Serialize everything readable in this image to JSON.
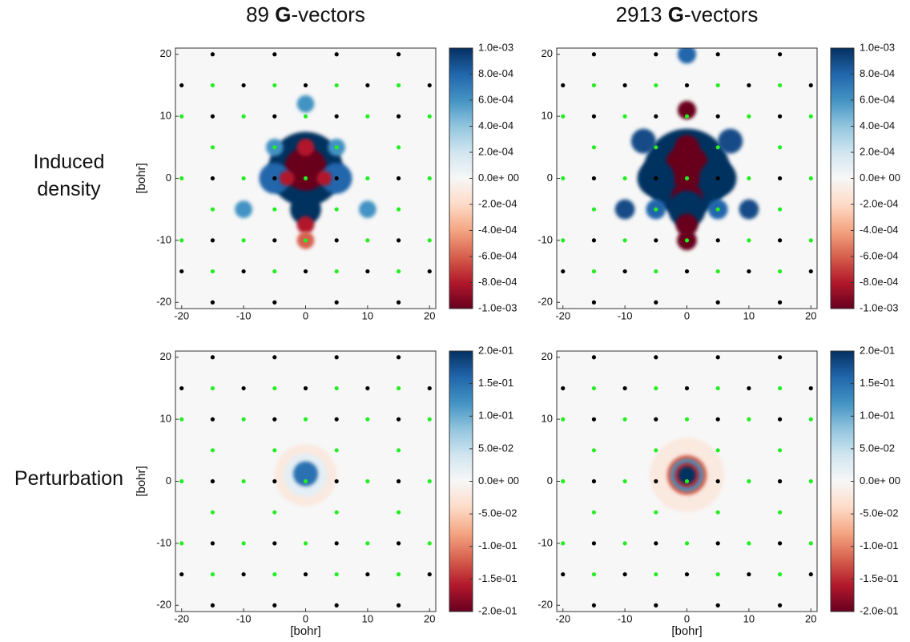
{
  "chart_data": [
    {
      "type": "heatmap",
      "title_parts": [
        "89 ",
        "G",
        "-vectors"
      ],
      "title_bold": [
        false,
        true,
        false
      ],
      "row_label": [
        "Induced",
        "density"
      ],
      "ylabel": "[bohr]",
      "xlim": [
        -21,
        21
      ],
      "ylim": [
        -21,
        21
      ],
      "xticks": [
        -20,
        -10,
        0,
        10,
        20
      ],
      "yticks": [
        -20,
        -10,
        0,
        10,
        20
      ],
      "colormap": [
        "#67001f",
        "#b2182b",
        "#d6604d",
        "#f4a582",
        "#fddbc7",
        "#f7f7f7",
        "#d1e5f0",
        "#92c5de",
        "#4393c3",
        "#2166ac",
        "#053061"
      ],
      "clim": [
        -0.001,
        0.001
      ],
      "cticks": [
        {
          "value": 0.001,
          "label": "1.0e-03"
        },
        {
          "value": 0.0008,
          "label": "8.0e-04"
        },
        {
          "value": 0.0006,
          "label": "6.0e-04"
        },
        {
          "value": 0.0004,
          "label": "4.0e-04"
        },
        {
          "value": 0.0002,
          "label": "2.0e-04"
        },
        {
          "value": 0,
          "label": "0.0e+ 00"
        },
        {
          "value": -0.0002,
          "label": "-2.0e-04"
        },
        {
          "value": -0.0004,
          "label": "-4.0e-04"
        },
        {
          "value": -0.0006,
          "label": "-6.0e-04"
        },
        {
          "value": -0.0008,
          "label": "-8.0e-04"
        },
        {
          "value": -0.001,
          "label": "-1.0e-03"
        }
      ],
      "features": [
        {
          "x": 0,
          "y": 1.5,
          "r": 6,
          "value": 0.001
        },
        {
          "x": 0,
          "y": 1.5,
          "r": 3.5,
          "value": -0.001
        },
        {
          "x": -5,
          "y": 0,
          "r": 2.5,
          "value": 0.0008
        },
        {
          "x": 5,
          "y": 0,
          "r": 2.5,
          "value": 0.0008
        },
        {
          "x": -3,
          "y": 0,
          "r": 1.2,
          "value": -0.0008
        },
        {
          "x": 3,
          "y": 0,
          "r": 1.2,
          "value": -0.0008
        },
        {
          "x": 0,
          "y": -5,
          "r": 2.5,
          "value": 0.001
        },
        {
          "x": 0,
          "y": -7.5,
          "r": 1.4,
          "value": -0.0008
        },
        {
          "x": 0,
          "y": -10,
          "r": 1.4,
          "value": -0.0006
        },
        {
          "x": 0,
          "y": 5,
          "r": 1.4,
          "value": -0.0008
        },
        {
          "x": 0,
          "y": 12,
          "r": 1.4,
          "value": 0.0006
        },
        {
          "x": -10,
          "y": -5,
          "r": 1.4,
          "value": 0.0006
        },
        {
          "x": 10,
          "y": -5,
          "r": 1.4,
          "value": 0.0006
        },
        {
          "x": -5,
          "y": 5,
          "r": 1.4,
          "value": 0.0006
        },
        {
          "x": 5,
          "y": 5,
          "r": 1.4,
          "value": 0.0006
        }
      ],
      "points": [
        {
          "color": "#000000",
          "x": [
            -15,
            -5,
            5,
            15,
            -20,
            -10,
            0,
            10,
            20,
            -15,
            -5,
            5,
            15,
            -15,
            -5,
            5,
            15,
            -15,
            -5,
            5,
            15,
            -20,
            -10,
            0,
            10,
            20,
            -15,
            -5,
            5,
            15
          ],
          "y": [
            20,
            20,
            20,
            20,
            15,
            15,
            15,
            15,
            15,
            10,
            10,
            10,
            10,
            0,
            0,
            0,
            0,
            -10,
            -10,
            -10,
            -10,
            -15,
            -15,
            -15,
            -15,
            -15,
            -20,
            -20,
            -20,
            -20
          ]
        },
        {
          "color": "#22ee22",
          "x": [
            -15,
            -5,
            5,
            15,
            -20,
            -10,
            0,
            10,
            20,
            -15,
            -5,
            5,
            15,
            -20,
            -10,
            0,
            10,
            20,
            -15,
            -5,
            5,
            15,
            -20,
            -10,
            0,
            10,
            20,
            -15,
            -5,
            5,
            15
          ],
          "y": [
            15,
            15,
            15,
            15,
            10,
            10,
            10,
            10,
            10,
            5,
            5,
            5,
            5,
            0,
            0,
            0,
            0,
            0,
            -5,
            -5,
            -5,
            -5,
            -10,
            -10,
            -10,
            -10,
            -10,
            -15,
            -15,
            -15,
            -15
          ]
        }
      ]
    },
    {
      "type": "heatmap",
      "title_parts": [
        "2913 ",
        "G",
        "-vectors"
      ],
      "title_bold": [
        false,
        true,
        false
      ],
      "xlim": [
        -21,
        21
      ],
      "ylim": [
        -21,
        21
      ],
      "xticks": [
        -20,
        -10,
        0,
        10,
        20
      ],
      "yticks": [
        -20,
        -10,
        0,
        10,
        20
      ],
      "colormap": [
        "#67001f",
        "#b2182b",
        "#d6604d",
        "#f4a582",
        "#fddbc7",
        "#f7f7f7",
        "#d1e5f0",
        "#92c5de",
        "#4393c3",
        "#2166ac",
        "#053061"
      ],
      "clim": [
        -0.001,
        0.001
      ],
      "cticks": [
        {
          "value": 0.001,
          "label": "1.0e-03"
        },
        {
          "value": 0.0008,
          "label": "8.0e-04"
        },
        {
          "value": 0.0006,
          "label": "6.0e-04"
        },
        {
          "value": 0.0004,
          "label": "4.0e-04"
        },
        {
          "value": 0.0002,
          "label": "2.0e-04"
        },
        {
          "value": 0,
          "label": "0.0e+ 00"
        },
        {
          "value": -0.0002,
          "label": "-2.0e-04"
        },
        {
          "value": -0.0004,
          "label": "-4.0e-04"
        },
        {
          "value": -0.0006,
          "label": "-6.0e-04"
        },
        {
          "value": -0.0008,
          "label": "-8.0e-04"
        },
        {
          "value": -0.001,
          "label": "-1.0e-03"
        }
      ],
      "features": [
        {
          "x": 0,
          "y": 1,
          "r": 7,
          "value": 0.001
        },
        {
          "x": 0,
          "y": 2,
          "r": 3.5,
          "value": -0.001
        },
        {
          "x": -5,
          "y": 0,
          "r": 3,
          "value": 0.001
        },
        {
          "x": 5,
          "y": 0,
          "r": 3,
          "value": 0.001
        },
        {
          "x": 0,
          "y": -3,
          "r": 2.5,
          "value": -0.001
        },
        {
          "x": 0,
          "y": -5,
          "r": 3,
          "value": 0.001
        },
        {
          "x": 0,
          "y": -7.5,
          "r": 1.8,
          "value": -0.001
        },
        {
          "x": 0,
          "y": -10,
          "r": 1.6,
          "value": -0.001
        },
        {
          "x": 0,
          "y": 5,
          "r": 2,
          "value": -0.001
        },
        {
          "x": 0,
          "y": 11,
          "r": 1.5,
          "value": -0.001
        },
        {
          "x": 0,
          "y": 20,
          "r": 1.5,
          "value": 0.0008
        },
        {
          "x": -7,
          "y": 6,
          "r": 2,
          "value": 0.0009
        },
        {
          "x": 7,
          "y": 6,
          "r": 2,
          "value": 0.0009
        },
        {
          "x": -10,
          "y": -5,
          "r": 1.6,
          "value": 0.0009
        },
        {
          "x": 10,
          "y": -5,
          "r": 1.6,
          "value": 0.0009
        },
        {
          "x": -5,
          "y": -5,
          "r": 1.6,
          "value": 0.0008
        },
        {
          "x": 5,
          "y": -5,
          "r": 1.6,
          "value": 0.0008
        }
      ],
      "points": [
        {
          "color": "#000000",
          "x": [
            -15,
            -5,
            5,
            15,
            -20,
            -10,
            0,
            10,
            20,
            -15,
            -5,
            5,
            15,
            -15,
            -5,
            5,
            15,
            -15,
            -5,
            5,
            15,
            -20,
            -10,
            0,
            10,
            20,
            -15,
            -5,
            5,
            15
          ],
          "y": [
            20,
            20,
            20,
            20,
            15,
            15,
            15,
            15,
            15,
            10,
            10,
            10,
            10,
            0,
            0,
            0,
            0,
            -10,
            -10,
            -10,
            -10,
            -15,
            -15,
            -15,
            -15,
            -15,
            -20,
            -20,
            -20,
            -20
          ]
        },
        {
          "color": "#22ee22",
          "x": [
            -15,
            -5,
            5,
            15,
            -20,
            -10,
            0,
            10,
            20,
            -15,
            -5,
            5,
            15,
            -20,
            -10,
            0,
            10,
            20,
            -15,
            -5,
            5,
            15,
            -20,
            -10,
            0,
            10,
            20,
            -15,
            -5,
            5,
            15
          ],
          "y": [
            15,
            15,
            15,
            15,
            10,
            10,
            10,
            10,
            10,
            5,
            5,
            5,
            5,
            0,
            0,
            0,
            0,
            0,
            -5,
            -5,
            -5,
            -5,
            -10,
            -10,
            -10,
            -10,
            -10,
            -15,
            -15,
            -15,
            -15
          ]
        }
      ]
    },
    {
      "type": "heatmap",
      "row_label": [
        "Perturbation"
      ],
      "ylabel": "[bohr]",
      "xlabel": "[bohr]",
      "xlim": [
        -21,
        21
      ],
      "ylim": [
        -21,
        21
      ],
      "xticks": [
        -20,
        -10,
        0,
        10,
        20
      ],
      "yticks": [
        -20,
        -10,
        0,
        10,
        20
      ],
      "colormap": [
        "#67001f",
        "#b2182b",
        "#d6604d",
        "#f4a582",
        "#fddbc7",
        "#f7f7f7",
        "#d1e5f0",
        "#92c5de",
        "#4393c3",
        "#2166ac",
        "#053061"
      ],
      "clim": [
        -0.2,
        0.2
      ],
      "cticks": [
        {
          "value": 0.2,
          "label": "2.0e-01"
        },
        {
          "value": 0.15,
          "label": "1.5e-01"
        },
        {
          "value": 0.1,
          "label": "1.0e-01"
        },
        {
          "value": 0.05,
          "label": "5.0e-02"
        },
        {
          "value": 0,
          "label": "0.0e+ 00"
        },
        {
          "value": -0.05,
          "label": "-5.0e-02"
        },
        {
          "value": -0.1,
          "label": "-1.0e-01"
        },
        {
          "value": -0.15,
          "label": "-1.5e-01"
        },
        {
          "value": -0.2,
          "label": "-2.0e-01"
        }
      ],
      "features": [
        {
          "x": 0,
          "y": 1,
          "r": 5,
          "value": -0.02
        },
        {
          "x": 0,
          "y": 1,
          "r": 3.5,
          "value": 0.02
        },
        {
          "x": 0,
          "y": 1.2,
          "r": 2,
          "value": 0.15
        }
      ],
      "points": [
        {
          "color": "#000000",
          "x": [
            -15,
            -5,
            5,
            15,
            -20,
            -10,
            0,
            10,
            20,
            -15,
            -5,
            5,
            15,
            -15,
            -5,
            5,
            15,
            -15,
            -5,
            5,
            15,
            -20,
            -10,
            0,
            10,
            20,
            -15,
            -5,
            5,
            15
          ],
          "y": [
            20,
            20,
            20,
            20,
            15,
            15,
            15,
            15,
            15,
            10,
            10,
            10,
            10,
            0,
            0,
            0,
            0,
            -10,
            -10,
            -10,
            -10,
            -15,
            -15,
            -15,
            -15,
            -15,
            -20,
            -20,
            -20,
            -20
          ]
        },
        {
          "color": "#22ee22",
          "x": [
            -15,
            -5,
            5,
            15,
            -20,
            -10,
            0,
            10,
            20,
            -15,
            -5,
            5,
            15,
            -20,
            -10,
            0,
            10,
            20,
            -15,
            -5,
            5,
            15,
            -20,
            -10,
            0,
            10,
            20,
            -15,
            -5,
            5,
            15
          ],
          "y": [
            15,
            15,
            15,
            15,
            10,
            10,
            10,
            10,
            10,
            5,
            5,
            5,
            5,
            0,
            0,
            0,
            0,
            0,
            -5,
            -5,
            -5,
            -5,
            -10,
            -10,
            -10,
            -10,
            -10,
            -15,
            -15,
            -15,
            -15
          ]
        }
      ]
    },
    {
      "type": "heatmap",
      "xlabel": "[bohr]",
      "xlim": [
        -21,
        21
      ],
      "ylim": [
        -21,
        21
      ],
      "xticks": [
        -20,
        -10,
        0,
        10,
        20
      ],
      "yticks": [
        -20,
        -10,
        0,
        10,
        20
      ],
      "colormap": [
        "#67001f",
        "#b2182b",
        "#d6604d",
        "#f4a582",
        "#fddbc7",
        "#f7f7f7",
        "#d1e5f0",
        "#92c5de",
        "#4393c3",
        "#2166ac",
        "#053061"
      ],
      "clim": [
        -0.2,
        0.2
      ],
      "cticks": [
        {
          "value": 0.2,
          "label": "2.0e-01"
        },
        {
          "value": 0.15,
          "label": "1.5e-01"
        },
        {
          "value": 0.1,
          "label": "1.0e-01"
        },
        {
          "value": 0.05,
          "label": "5.0e-02"
        },
        {
          "value": 0,
          "label": "0.0e+ 00"
        },
        {
          "value": -0.05,
          "label": "-5.0e-02"
        },
        {
          "value": -0.1,
          "label": "-1.0e-01"
        },
        {
          "value": -0.15,
          "label": "-1.5e-01"
        },
        {
          "value": -0.2,
          "label": "-2.0e-01"
        }
      ],
      "features": [
        {
          "x": 0,
          "y": 1,
          "r": 6,
          "value": -0.02
        },
        {
          "x": 0,
          "y": 1,
          "r": 3.2,
          "value": -0.12
        },
        {
          "x": 0,
          "y": 1,
          "r": 2.6,
          "value": 0.12
        },
        {
          "x": 0,
          "y": 1,
          "r": 2,
          "value": -0.15
        },
        {
          "x": 0,
          "y": 1,
          "r": 1.4,
          "value": 0.2
        }
      ],
      "points": [
        {
          "color": "#000000",
          "x": [
            -15,
            -5,
            5,
            15,
            -20,
            -10,
            0,
            10,
            20,
            -15,
            -5,
            5,
            15,
            -15,
            -5,
            5,
            15,
            -15,
            -5,
            5,
            15,
            -20,
            -10,
            0,
            10,
            20,
            -15,
            -5,
            5,
            15
          ],
          "y": [
            20,
            20,
            20,
            20,
            15,
            15,
            15,
            15,
            15,
            10,
            10,
            10,
            10,
            0,
            0,
            0,
            0,
            -10,
            -10,
            -10,
            -10,
            -15,
            -15,
            -15,
            -15,
            -15,
            -20,
            -20,
            -20,
            -20
          ]
        },
        {
          "color": "#22ee22",
          "x": [
            -15,
            -5,
            5,
            15,
            -20,
            -10,
            0,
            10,
            20,
            -15,
            -5,
            5,
            15,
            -20,
            -10,
            0,
            10,
            20,
            -15,
            -5,
            5,
            15,
            -20,
            -10,
            0,
            10,
            20,
            -15,
            -5,
            5,
            15
          ],
          "y": [
            15,
            15,
            15,
            15,
            10,
            10,
            10,
            10,
            10,
            5,
            5,
            5,
            5,
            0,
            0,
            0,
            0,
            0,
            -5,
            -5,
            -5,
            -5,
            -10,
            -10,
            -10,
            -10,
            -10,
            -15,
            -15,
            -15,
            -15
          ]
        }
      ]
    }
  ]
}
